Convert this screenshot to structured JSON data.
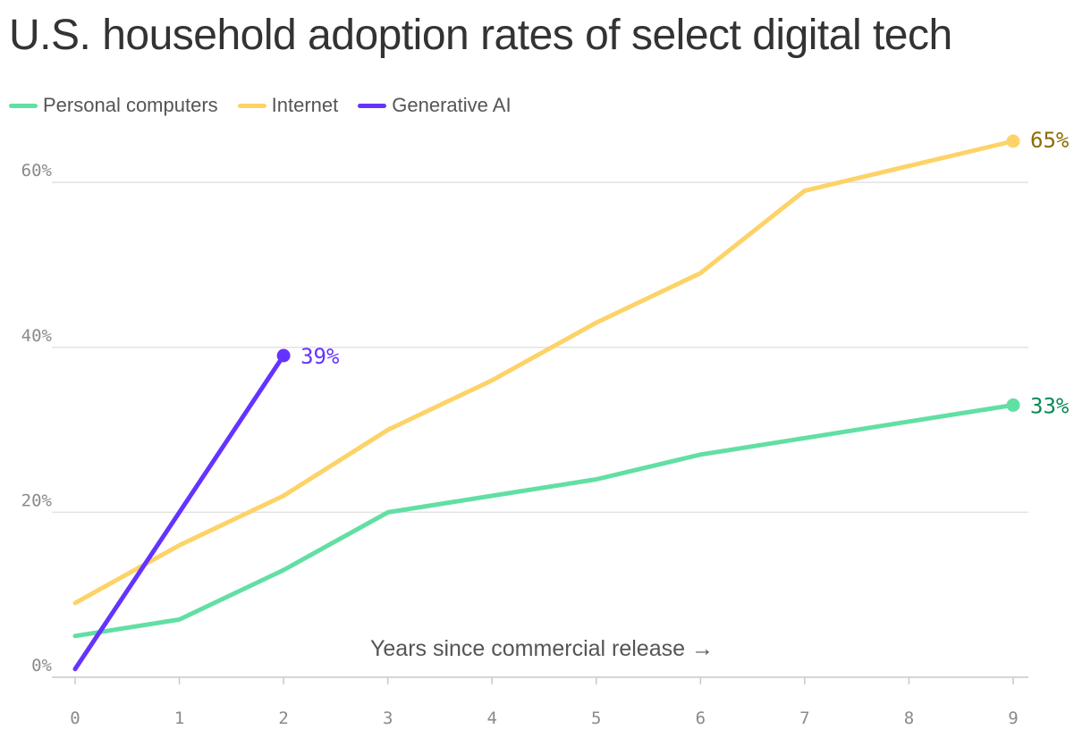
{
  "chart_data": {
    "type": "line",
    "title": "U.S. household adoption rates of select digital tech",
    "xlabel": "Years since commercial release →",
    "ylabel": "",
    "x": [
      0,
      1,
      2,
      3,
      4,
      5,
      6,
      7,
      8,
      9
    ],
    "x_tick_labels": [
      "0",
      "1",
      "2",
      "3",
      "4",
      "5",
      "6",
      "7",
      "8",
      "9"
    ],
    "xlim": [
      0,
      9
    ],
    "ylim": [
      0,
      65
    ],
    "y_ticks": [
      0,
      20,
      40,
      60
    ],
    "y_tick_labels": [
      "0%",
      "20%",
      "40%",
      "60%"
    ],
    "grid": true,
    "legend_position": "top-left",
    "series": [
      {
        "name": "Personal computers",
        "color": "#62dfa3",
        "label_color": "#0b8a55",
        "x": [
          0,
          1,
          2,
          3,
          4,
          5,
          6,
          7,
          8,
          9
        ],
        "values": [
          5,
          7,
          13,
          20,
          22,
          24,
          27,
          29,
          31,
          33
        ],
        "end_label": "33%"
      },
      {
        "name": "Internet",
        "color": "#fdd368",
        "label_color": "#8c6d00",
        "x": [
          0,
          1,
          2,
          3,
          4,
          5,
          6,
          7,
          8,
          9
        ],
        "values": [
          9,
          16,
          22,
          30,
          36,
          43,
          49,
          59,
          62,
          65
        ],
        "end_label": "65%"
      },
      {
        "name": "Generative AI",
        "color": "#6533ff",
        "label_color": "#6533ff",
        "x": [
          0,
          1,
          2
        ],
        "values": [
          1,
          20,
          39
        ],
        "end_label": "39%"
      }
    ]
  }
}
